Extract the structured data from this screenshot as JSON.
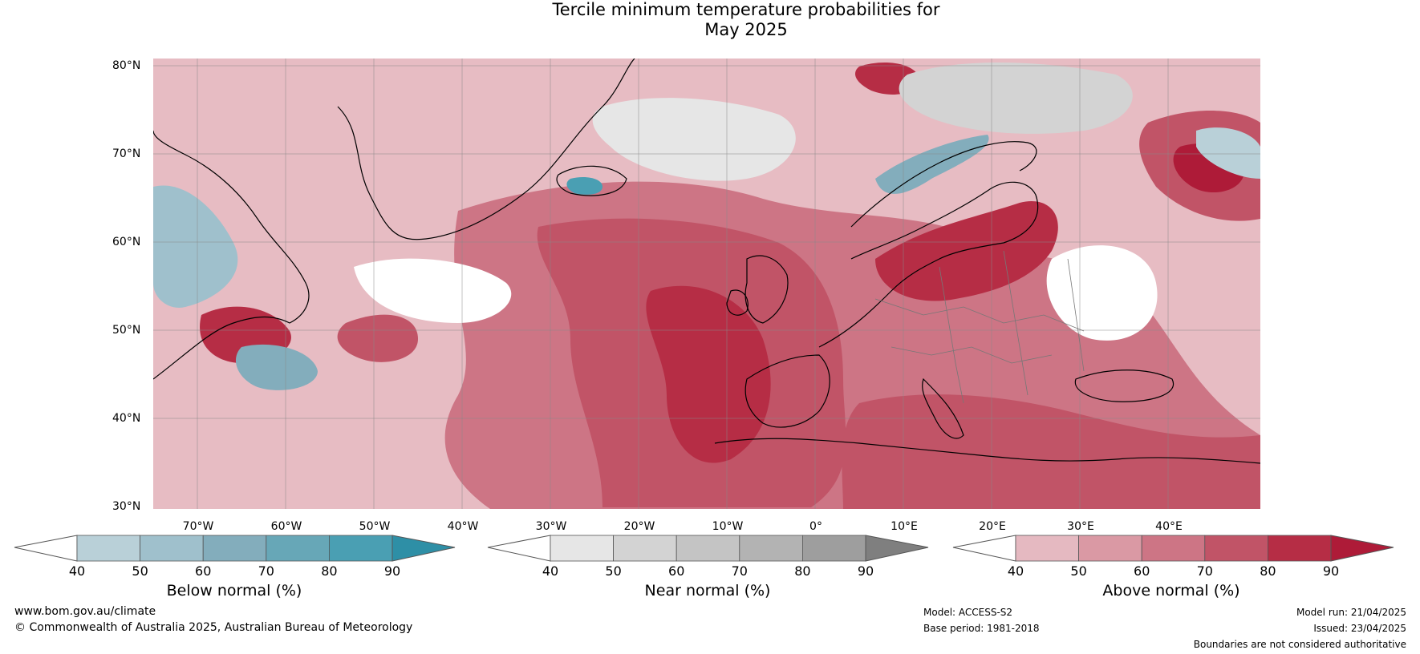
{
  "title_line1": "Tercile minimum temperature probabilities for",
  "title_line2": "May 2025",
  "lat_labels": [
    "80°N",
    "70°N",
    "60°N",
    "50°N",
    "40°N",
    "30°N"
  ],
  "lon_labels": [
    "70°W",
    "60°W",
    "50°W",
    "40°W",
    "30°W",
    "20°W",
    "10°W",
    "0°",
    "10°E",
    "20°E",
    "30°E",
    "40°E"
  ],
  "colorbars": [
    {
      "label": "Below normal (%)",
      "ticks": [
        "40",
        "50",
        "60",
        "70",
        "80",
        "90"
      ],
      "colors": [
        "#ffffff",
        "#b9d0d8",
        "#9fc0cc",
        "#83adbc",
        "#67a7b7",
        "#4a9fb3",
        "#2e8fa6"
      ]
    },
    {
      "label": "Near normal (%)",
      "ticks": [
        "40",
        "50",
        "60",
        "70",
        "80",
        "90"
      ],
      "colors": [
        "#ffffff",
        "#e6e6e6",
        "#d3d3d3",
        "#c4c4c4",
        "#b3b3b3",
        "#9e9e9e",
        "#7f7f7f"
      ]
    },
    {
      "label": "Above normal (%)",
      "ticks": [
        "40",
        "50",
        "60",
        "70",
        "80",
        "90"
      ],
      "colors": [
        "#ffffff",
        "#e5b9c1",
        "#da99a4",
        "#cd7585",
        "#c15467",
        "#b62d45",
        "#ae1b38"
      ]
    }
  ],
  "footer": {
    "website": "www.bom.gov.au/climate",
    "copyright": "© Commonwealth of Australia 2025, Australian Bureau of Meteorology",
    "model": "Model: ACCESS-S2",
    "base_period": "Base period: 1981-2018",
    "model_run": "Model run: 21/04/2025",
    "issued": "Issued: 23/04/2025",
    "disclaimer": "Boundaries are not considered authoritative"
  }
}
